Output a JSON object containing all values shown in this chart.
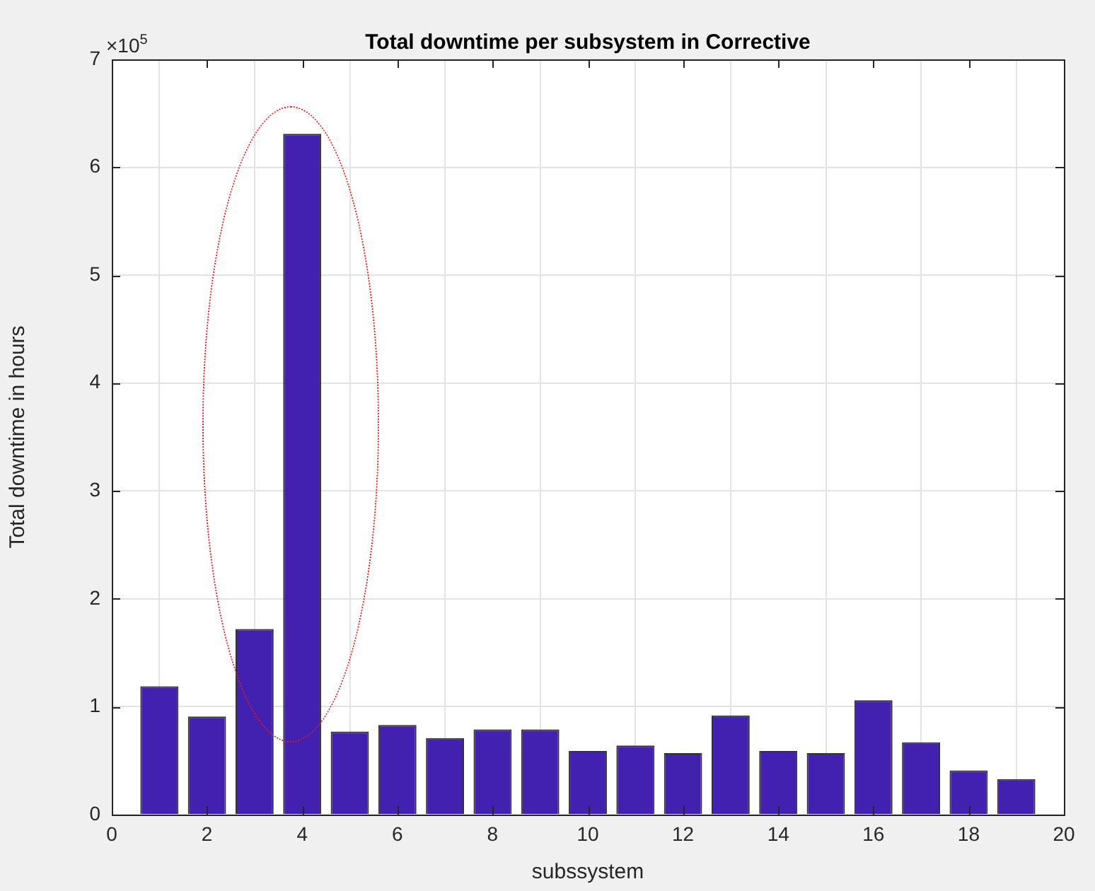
{
  "chart_data": {
    "type": "bar",
    "title": "Total downtime per subsystem in Corrective",
    "xlabel": "subssystem",
    "ylabel": "Total downtime in hours",
    "annotations": [
      "×10$^{5}$"
    ],
    "x": [
      1,
      2,
      3,
      4,
      5,
      6,
      7,
      8,
      9,
      10,
      11,
      12,
      13,
      14,
      15,
      16,
      17,
      18,
      19
    ],
    "values": [
      1.19,
      0.91,
      1.72,
      6.31,
      0.77,
      0.83,
      0.71,
      0.79,
      0.79,
      0.59,
      0.64,
      0.57,
      0.92,
      0.59,
      0.57,
      1.06,
      0.67,
      0.41,
      0.33
    ],
    "color": "#4220b0",
    "xlim": [
      0,
      20
    ],
    "xticks": [
      0,
      2,
      4,
      6,
      8,
      10,
      12,
      14,
      16,
      18,
      20
    ],
    "ylim": [
      0,
      7
    ],
    "yticks": [
      0,
      1,
      2,
      3,
      4,
      5,
      6,
      7
    ],
    "grid": true,
    "legend": false
  }
}
